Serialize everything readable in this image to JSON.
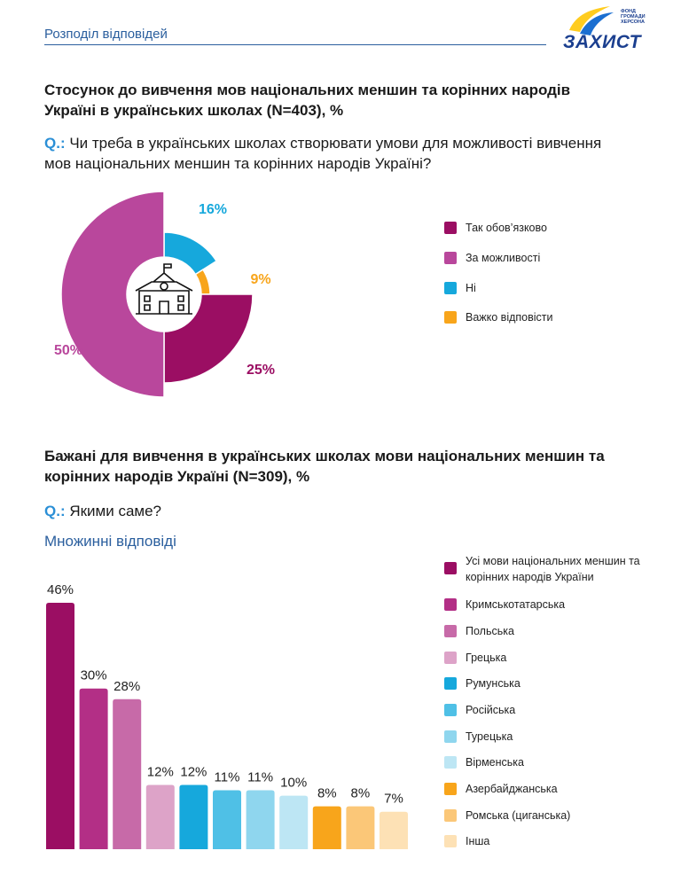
{
  "header": {
    "title": "Розподіл відповідей",
    "logo_main": "ЗАХИСТ",
    "logo_sub": "ФОНД ГРОМАДИ ХЕРСОНА"
  },
  "section1": {
    "title": "Стосунок до вивчення мов національних меншин та корінних народів Україні в українських школах (N=403), %",
    "q_prefix": "Q.:",
    "question": "Чи треба в українських школах створювати умови для можливості вивчення мов національних меншин та корінних народів Україні?"
  },
  "section2": {
    "title": "Бажані для вивчення в українських школах мови національних меншин та корінних народів Україні  (N=309), %",
    "q_prefix": "Q.:",
    "question": "Якими саме?",
    "subtitle": "Множинні відповіді"
  },
  "chart_data": [
    {
      "type": "pie",
      "labels": [
        "Так обов’язково",
        "За можливості",
        "Ні",
        "Важко відповісти"
      ],
      "values": [
        25,
        50,
        16,
        9
      ],
      "value_labels": [
        "25%",
        "50%",
        "16%",
        "9%"
      ],
      "colors": [
        "#9b0e63",
        "#b9479c",
        "#16a8dc",
        "#f8a51b"
      ],
      "legend_position": "right",
      "center_icon": "school-building-icon"
    },
    {
      "type": "bar",
      "categories": [
        "Усі мови національних меншин та корінних народів України",
        "Кримськотатарська",
        "Польська",
        "Грецька",
        "Румунська",
        "Російська",
        "Турецька",
        "Вірменська",
        "Азербайджанська",
        "Ромська (циганська)",
        "Інша"
      ],
      "values": [
        46,
        30,
        28,
        12,
        12,
        11,
        11,
        10,
        8,
        8,
        7
      ],
      "value_labels": [
        "46%",
        "30%",
        "28%",
        "12%",
        "12%",
        "11%",
        "11%",
        "10%",
        "8%",
        "8%",
        "7%"
      ],
      "colors": [
        "#9b0e63",
        "#b32f86",
        "#c76aa8",
        "#dda3c8",
        "#16a8dc",
        "#4fc0e6",
        "#8fd6ee",
        "#bde6f4",
        "#f8a51b",
        "#fbc778",
        "#fde1b5"
      ],
      "legend_position": "right",
      "ylim": [
        0,
        50
      ]
    }
  ]
}
